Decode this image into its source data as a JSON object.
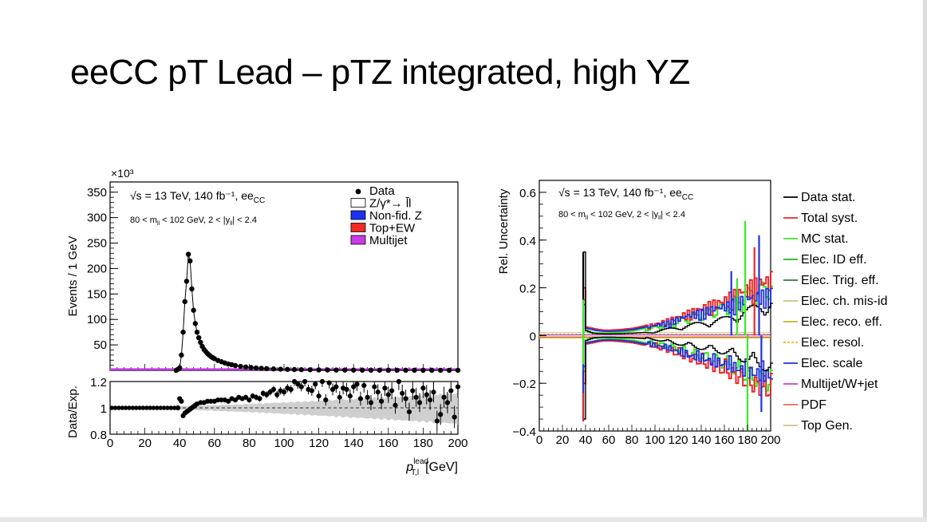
{
  "slide": {
    "title": "eeCC pT Lead – pTZ integrated, high YZ"
  },
  "chart_data": [
    {
      "type": "scatter",
      "panel": "distribution",
      "title": "",
      "multiplier": "×10³",
      "ylabel": "Events / 1 GeV",
      "ylim": [
        0,
        370
      ],
      "xlim": [
        0,
        200
      ],
      "yticks": [
        "50",
        "100",
        "150",
        "200",
        "250",
        "300",
        "350"
      ],
      "annotations": [
        "√s = 13 TeV, 140 fb⁻¹, ee",
        "CC",
        "80 < m",
        "ll",
        " < 102 GeV, 2 < |y",
        "ll",
        "| < 2.4"
      ],
      "legend_position": "top-right",
      "legend": [
        {
          "label": "Data",
          "color": "#000000",
          "marker": "dot"
        },
        {
          "label": "Z/γ*→ l̄l",
          "color": "#ffffff",
          "marker": "box"
        },
        {
          "label": "Non-fid. Z",
          "color": "#1f30f5",
          "marker": "box"
        },
        {
          "label": "Top+EW",
          "color": "#f52a22",
          "marker": "box"
        },
        {
          "label": "Multijet",
          "color": "#c93ae8",
          "marker": "box"
        }
      ],
      "series": [
        {
          "name": "Data",
          "x": [
            38,
            39,
            40,
            41,
            42,
            43,
            44,
            45,
            46,
            47,
            48,
            49,
            50,
            51,
            52,
            53,
            54,
            55,
            56,
            57,
            58,
            59,
            60,
            62,
            64,
            66,
            68,
            70,
            72,
            75,
            78,
            81,
            84,
            87,
            90,
            94,
            98,
            102,
            106,
            110,
            115,
            120,
            125,
            130,
            135,
            140,
            145,
            150,
            155,
            160,
            165,
            170,
            175,
            180,
            185,
            190,
            195,
            200
          ],
          "y": [
            0,
            2,
            5,
            30,
            75,
            135,
            175,
            228,
            215,
            160,
            118,
            92,
            75,
            64,
            55,
            47,
            41,
            37,
            33,
            30,
            27,
            25,
            23,
            19.5,
            17,
            14.5,
            12.5,
            11,
            9.5,
            7.8,
            6.5,
            5.5,
            4.7,
            4.0,
            3.4,
            2.8,
            2.3,
            1.9,
            1.6,
            1.3,
            1.1,
            0.9,
            0.8,
            0.7,
            0.6,
            0.5,
            0.45,
            0.4,
            0.35,
            0.3,
            0.28,
            0.25,
            0.22,
            0.2,
            0.18,
            0.16,
            0.15,
            0.14
          ]
        },
        {
          "name": "Multijet",
          "x": [
            0,
            200
          ],
          "y": [
            0.5,
            0.5
          ]
        }
      ]
    },
    {
      "type": "scatter",
      "panel": "ratio",
      "xlabel": "p",
      "xlabel_sup": "lead",
      "xlabel_sub": "T,l",
      "xlabel_unit": "[GeV]",
      "ylabel": "Data/Exp.",
      "ylim": [
        0.8,
        1.2
      ],
      "yticks": [
        "0.8",
        "1",
        "1.2"
      ],
      "xlim": [
        0,
        200
      ],
      "xticks": [
        "0",
        "20",
        "40",
        "60",
        "80",
        "100",
        "120",
        "140",
        "160",
        "180",
        "200"
      ],
      "series": [
        {
          "name": "Data",
          "x": [
            1,
            3,
            5,
            7,
            9,
            11,
            13,
            15,
            17,
            19,
            21,
            23,
            25,
            27,
            29,
            31,
            33,
            35,
            37,
            39,
            40,
            41,
            42,
            43,
            44,
            45,
            46,
            47,
            48,
            49,
            50,
            52,
            54,
            56,
            58,
            60,
            62,
            64,
            66,
            68,
            70,
            72,
            74,
            76,
            78,
            80,
            82,
            84,
            86,
            88,
            90,
            92,
            94,
            96,
            98,
            100,
            102,
            104,
            106,
            108,
            110,
            112,
            114,
            116,
            118,
            120,
            122,
            124,
            126,
            128,
            130,
            132,
            134,
            136,
            138,
            140,
            142,
            144,
            146,
            148,
            150,
            152,
            154,
            156,
            158,
            160,
            162,
            164,
            166,
            168,
            170,
            172,
            174,
            176,
            178,
            180,
            182,
            184,
            186,
            188,
            190,
            192,
            194,
            196,
            198,
            200
          ],
          "y": [
            1,
            1,
            1,
            1,
            1,
            1,
            1,
            1,
            1,
            1,
            1,
            1,
            1,
            1,
            1,
            1,
            1,
            1,
            1,
            1,
            1.07,
            1.05,
            0.94,
            0.96,
            0.97,
            0.98,
            0.99,
            1.0,
            1.01,
            1.02,
            1.03,
            1.04,
            1.04,
            1.05,
            1.05,
            1.05,
            1.06,
            1.06,
            1.06,
            1.05,
            1.07,
            1.06,
            1.08,
            1.07,
            1.08,
            1.06,
            1.09,
            1.08,
            1.07,
            1.11,
            1.1,
            1.12,
            1.14,
            1.1,
            1.13,
            1.12,
            1.15,
            1.14,
            1.2,
            1.18,
            1.16,
            1.2,
            1.14,
            1.13,
            1.18,
            1.09,
            1.2,
            1.06,
            1.19,
            1.14,
            1.16,
            1.08,
            1.15,
            1.14,
            1.09,
            1.16,
            1.18,
            1.07,
            1.17,
            1.08,
            1.04,
            1.16,
            1.12,
            1.05,
            1.15,
            1.1,
            1.13,
            1.02,
            1.2,
            1.11,
            1.07,
            0.97,
            1.13,
            1.08,
            1.04,
            1.15,
            1.1,
            1.06,
            1.12,
            0.9,
            0.95,
            1.08,
            1.04,
            1.13,
            0.93,
            1.16
          ]
        }
      ]
    },
    {
      "type": "line",
      "panel": "uncertainty",
      "title": "",
      "ylabel": "Rel. Uncertainty",
      "ylim": [
        -0.4,
        0.65
      ],
      "xlim": [
        0,
        200
      ],
      "yticks": [
        "−0.4",
        "−0.2",
        "0",
        "0.2",
        "0.4",
        "0.6"
      ],
      "xticks": [
        "0",
        "20",
        "40",
        "60",
        "80",
        "100",
        "120",
        "140",
        "160",
        "180",
        "200"
      ],
      "annotations": [
        "√s = 13 TeV, 140 fb⁻¹, ee",
        "CC",
        "80 < m",
        "ll",
        " < 102 GeV, 2 < |y",
        "ll",
        "| < 2.4"
      ],
      "legend_position": "right",
      "legend": [
        {
          "label": "Data stat.",
          "color": "#000000"
        },
        {
          "label": "Total syst.",
          "color": "#e8282a"
        },
        {
          "label": "MC stat.",
          "color": "#3ee62a"
        },
        {
          "label": "Elec. ID eff.",
          "color": "#22b02a"
        },
        {
          "label": "Elec. Trig. eff.",
          "color": "#2f7a46"
        },
        {
          "label": "Elec. ch. mis-id",
          "color": "#c9c08a"
        },
        {
          "label": "Elec. reco. eff.",
          "color": "#c2b81e"
        },
        {
          "label": "Elec. resol.",
          "color": "#f2b22a"
        },
        {
          "label": "Elec. scale",
          "color": "#2030e0"
        },
        {
          "label": "Multijet/W+jet",
          "color": "#d23ad8"
        },
        {
          "label": "PDF",
          "color": "#f0645a"
        },
        {
          "label": "Top Gen.",
          "color": "#cfc18a"
        }
      ],
      "envelopes": {
        "x": [
          38,
          39,
          40,
          45,
          50,
          55,
          60,
          70,
          80,
          90,
          100,
          110,
          120,
          130,
          140,
          150,
          160,
          170,
          180,
          190,
          200
        ],
        "data_stat": [
          0.35,
          0.05,
          0.02,
          0.01,
          0.008,
          0.007,
          0.007,
          0.008,
          0.01,
          0.013,
          0.02,
          0.03,
          0.04,
          0.05,
          0.06,
          0.07,
          0.08,
          0.1,
          0.12,
          0.14,
          0.16
        ],
        "total_syst": [
          0.2,
          0.06,
          0.035,
          0.03,
          0.025,
          0.022,
          0.022,
          0.025,
          0.03,
          0.04,
          0.055,
          0.07,
          0.09,
          0.11,
          0.13,
          0.15,
          0.17,
          0.2,
          0.23,
          0.25,
          0.27
        ],
        "mc_stat": [
          0.15,
          0.03,
          0.02,
          0.012,
          0.01,
          0.01,
          0.012,
          0.015,
          0.02,
          0.03,
          0.04,
          0.05,
          0.07,
          0.09,
          0.1,
          0.12,
          0.14,
          0.17,
          0.2,
          0.22,
          0.24
        ],
        "elec_scale": [
          0.13,
          0.04,
          0.03,
          0.025,
          0.02,
          0.018,
          0.018,
          0.02,
          0.025,
          0.035,
          0.05,
          0.06,
          0.08,
          0.1,
          0.11,
          0.13,
          0.14,
          0.16,
          0.18,
          0.19,
          0.2
        ]
      }
    }
  ]
}
